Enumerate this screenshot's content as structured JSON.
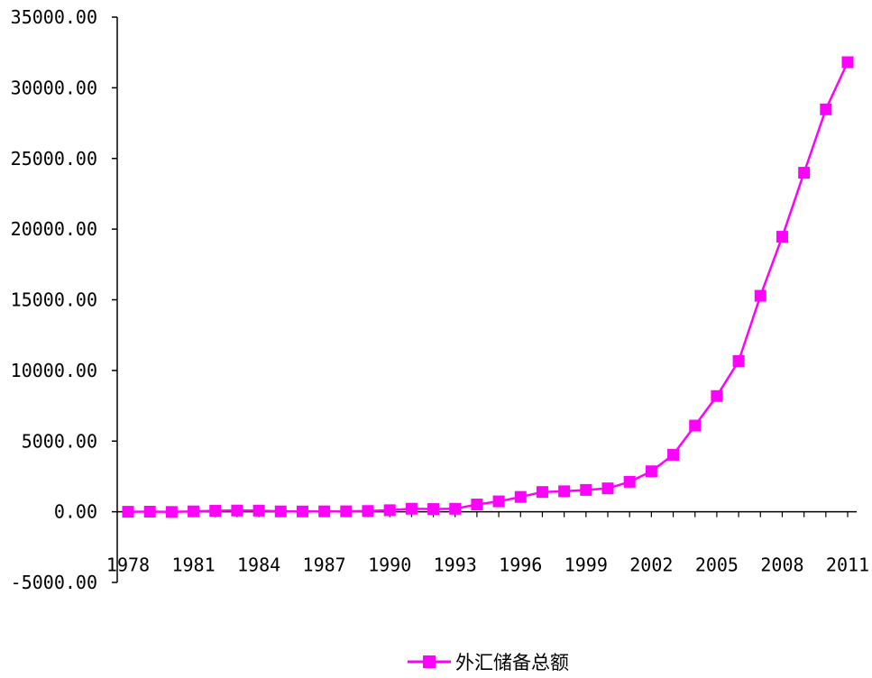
{
  "chart_data": {
    "type": "line",
    "title": "",
    "xlabel": "",
    "ylabel": "",
    "x": [
      1978,
      1979,
      1980,
      1981,
      1982,
      1983,
      1984,
      1985,
      1986,
      1987,
      1988,
      1989,
      1990,
      1991,
      1992,
      1993,
      1994,
      1995,
      1996,
      1997,
      1998,
      1999,
      2000,
      2001,
      2002,
      2003,
      2004,
      2005,
      2006,
      2007,
      2008,
      2009,
      2010,
      2011
    ],
    "x_tick_labels": [
      "1978",
      "1981",
      "1984",
      "1987",
      "1990",
      "1993",
      "1996",
      "1999",
      "2002",
      "2005",
      "2008",
      "2011"
    ],
    "y_tick_labels": [
      "35000.00",
      "30000.00",
      "25000.00",
      "20000.00",
      "15000.00",
      "10000.00",
      "5000.00",
      "0.00",
      "-5000.00"
    ],
    "ylim": [
      -5000,
      35000
    ],
    "grid": false,
    "legend_position": "bottom",
    "series": [
      {
        "name": "外汇储备总额",
        "color": "#ff00ff",
        "marker": "square",
        "values": [
          1.67,
          8.4,
          -12.96,
          27.08,
          69.86,
          89.01,
          82.2,
          26.44,
          20.72,
          29.23,
          33.72,
          55.5,
          110.93,
          217.12,
          194.43,
          211.99,
          516.2,
          735.97,
          1050.29,
          1398.9,
          1449.59,
          1546.75,
          1655.74,
          2121.65,
          2864.07,
          4032.51,
          6099.32,
          8188.72,
          10663.44,
          15282.49,
          19460.3,
          23991.52,
          28473.38,
          31811.48
        ]
      }
    ]
  }
}
